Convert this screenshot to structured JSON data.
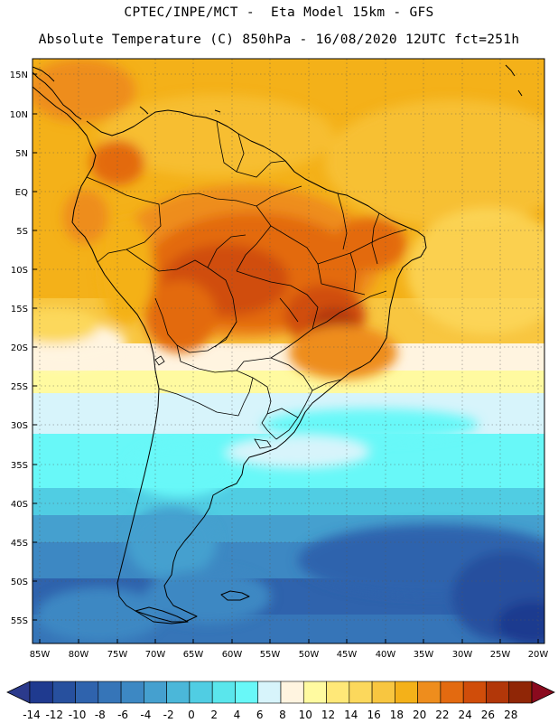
{
  "header": {
    "line1": "CPTEC/INPE/MCT -  Eta Model 15km - GFS",
    "line2": "Absolute Temperature (C) 850hPa - 16/08/2020 12UTC fct=251h"
  },
  "map": {
    "lat_labels": [
      "15N",
      "10N",
      "5N",
      "EQ",
      "5S",
      "10S",
      "15S",
      "20S",
      "25S",
      "30S",
      "35S",
      "40S",
      "45S",
      "50S",
      "55S"
    ],
    "lon_labels": [
      "85W",
      "80W",
      "75W",
      "70W",
      "65W",
      "60W",
      "55W",
      "50W",
      "45W",
      "40W",
      "35W",
      "30W",
      "25W",
      "20W"
    ]
  },
  "colorbar": {
    "labels": [
      "-14",
      "-12",
      "-10",
      "-8",
      "-6",
      "-4",
      "-2",
      "0",
      "2",
      "4",
      "6",
      "8",
      "10",
      "12",
      "14",
      "16",
      "18",
      "20",
      "22",
      "24",
      "26",
      "28"
    ],
    "colors": [
      "#1f3a8f",
      "#27509e",
      "#2f63ad",
      "#3675b8",
      "#3d88c3",
      "#45a0cf",
      "#4bb7d9",
      "#50cde3",
      "#5ae6ec",
      "#68f8f8",
      "#d7f4fb",
      "#fff4e0",
      "#fffaa0",
      "#ffe878",
      "#fcd85c",
      "#f8c640",
      "#f4b119",
      "#ee8d1d",
      "#e36a10",
      "#d04d0a",
      "#b23709",
      "#902606"
    ],
    "low_arrow_color": "#2b3a8c",
    "high_arrow_color": "#8a0a1e"
  }
}
